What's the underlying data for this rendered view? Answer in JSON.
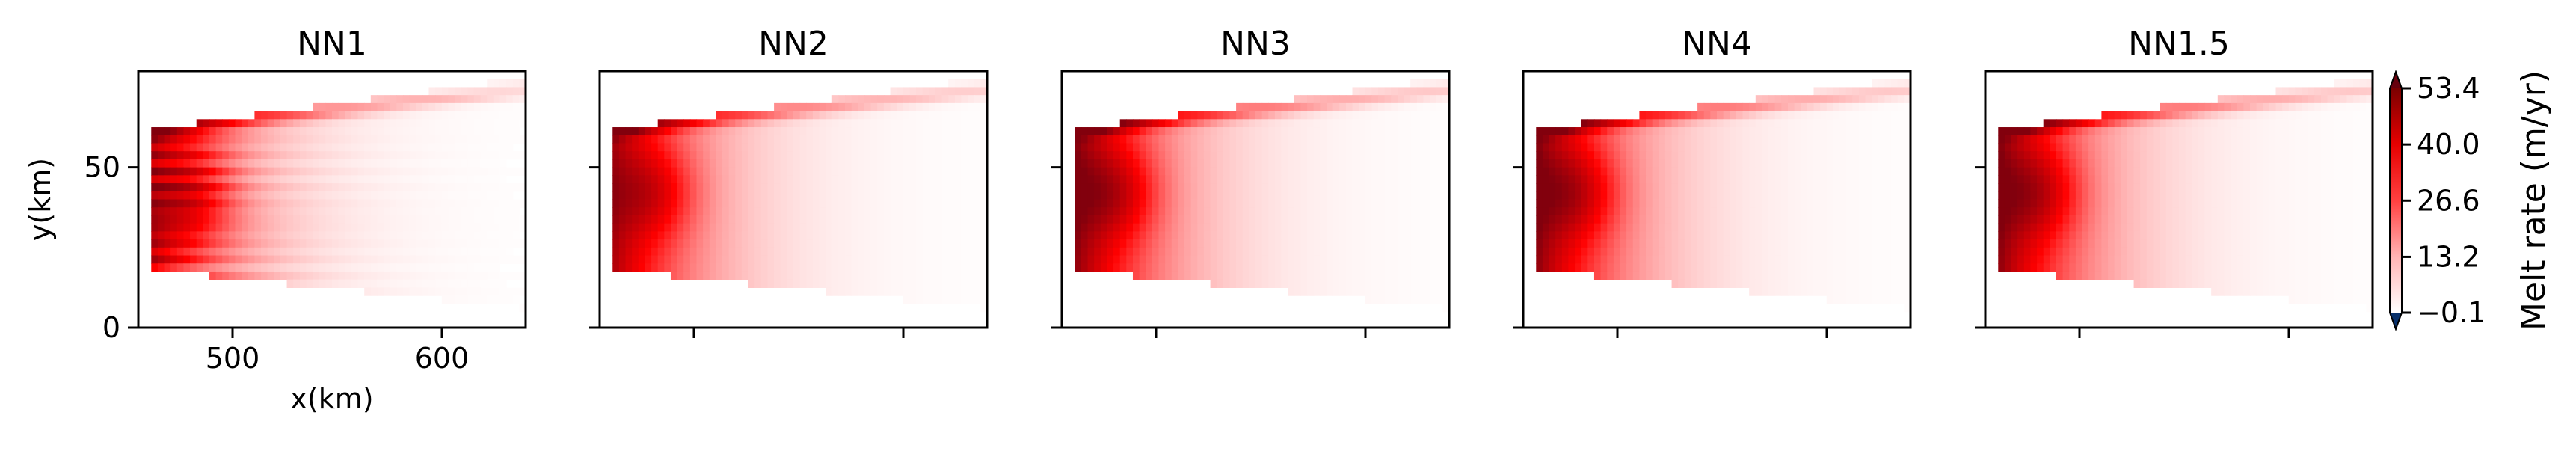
{
  "chart_data": [
    {
      "type": "heatmap",
      "title": "NN1",
      "xlabel": "x(km)",
      "ylabel": "y(km)",
      "xlim": [
        455,
        640
      ],
      "ylim": [
        0,
        80
      ],
      "xticks": [
        500,
        600
      ],
      "xtick_labels": [
        "500",
        "600"
      ],
      "yticks": [
        0,
        50
      ],
      "ytick_labels": [
        "0",
        "50"
      ],
      "field": {
        "front_x": 462,
        "shelf_y": [
          18,
          62
        ],
        "peak_melt": 40,
        "streaky": true
      }
    },
    {
      "type": "heatmap",
      "title": "NN2",
      "xlim": [
        455,
        640
      ],
      "ylim": [
        0,
        80
      ],
      "xticks": [
        500,
        600
      ],
      "yticks": [
        0,
        50
      ],
      "field": {
        "front_x": 462,
        "shelf_y": [
          18,
          62
        ],
        "peak_melt": 45,
        "streaky": false
      }
    },
    {
      "type": "heatmap",
      "title": "NN3",
      "xlim": [
        455,
        640
      ],
      "ylim": [
        0,
        80
      ],
      "xticks": [
        500,
        600
      ],
      "yticks": [
        0,
        50
      ],
      "field": {
        "front_x": 462,
        "shelf_y": [
          18,
          62
        ],
        "peak_melt": 50,
        "streaky": false
      }
    },
    {
      "type": "heatmap",
      "title": "NN4",
      "xlim": [
        455,
        640
      ],
      "ylim": [
        0,
        80
      ],
      "xticks": [
        500,
        600
      ],
      "yticks": [
        0,
        50
      ],
      "field": {
        "front_x": 462,
        "shelf_y": [
          18,
          62
        ],
        "peak_melt": 50,
        "streaky": false
      }
    },
    {
      "type": "heatmap",
      "title": "NN1.5",
      "xlim": [
        455,
        640
      ],
      "ylim": [
        0,
        80
      ],
      "xticks": [
        500,
        600
      ],
      "yticks": [
        0,
        50
      ],
      "field": {
        "front_x": 462,
        "shelf_y": [
          18,
          62
        ],
        "peak_melt": 50,
        "streaky": false
      }
    }
  ],
  "colorbar": {
    "label": "Melt rate (m/yr)",
    "min": -0.1,
    "max": 53.4,
    "ticks": [
      -0.1,
      13.2,
      26.6,
      40.0,
      53.4
    ],
    "tick_labels": [
      "−0.1",
      "13.2",
      "26.6",
      "40.0",
      "53.4"
    ],
    "colormap": "white-to-red",
    "over_color": "#67000d",
    "under_color": "#08306b"
  }
}
